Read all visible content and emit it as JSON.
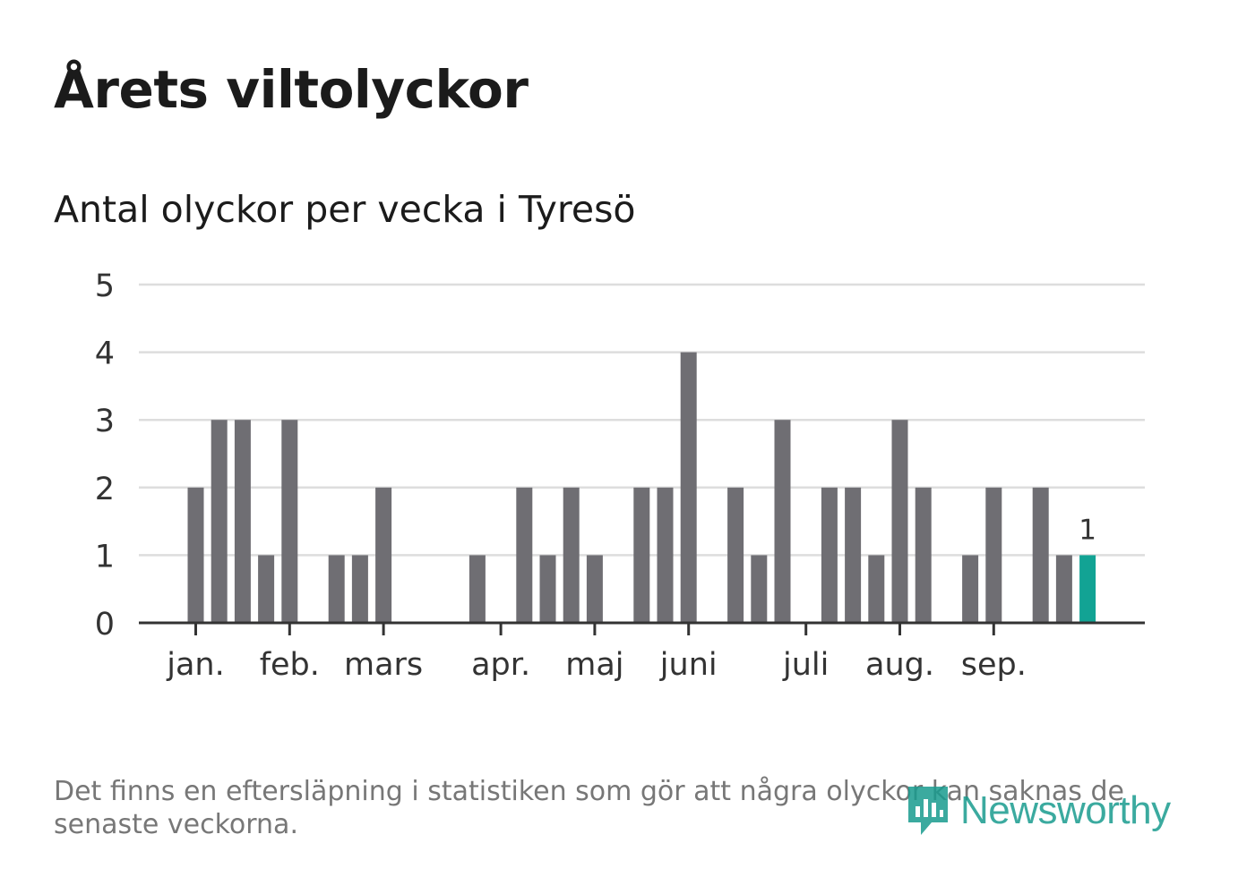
{
  "header": {
    "title": "Årets viltolyckor",
    "subtitle": "Antal olyckor per vecka i Tyresö"
  },
  "footer": {
    "note": "Det finns en eftersläpning i statistiken som gör att några olyckor kan saknas de senaste veckorna.",
    "brand": "Newsworthy"
  },
  "colors": {
    "bar": "#6f6e73",
    "highlight": "#12a394",
    "grid": "#dddddd",
    "axis": "#333333",
    "text": "#333333"
  },
  "chart_data": {
    "type": "bar",
    "title": "Antal olyckor per vecka i Tyresö",
    "xlabel": "",
    "ylabel": "",
    "ylim": [
      0,
      5
    ],
    "yticks": [
      0,
      1,
      2,
      3,
      4,
      5
    ],
    "weeks": [
      1,
      2,
      3,
      4,
      5,
      6,
      7,
      8,
      9,
      10,
      11,
      12,
      13,
      14,
      15,
      16,
      17,
      18,
      19,
      20,
      21,
      22,
      23,
      24,
      25,
      26,
      27,
      28,
      29,
      30,
      31,
      32,
      33,
      34,
      35,
      36,
      37,
      38,
      39,
      40
    ],
    "values": [
      2,
      3,
      3,
      1,
      3,
      0,
      1,
      1,
      2,
      0,
      0,
      0,
      1,
      0,
      2,
      1,
      2,
      1,
      0,
      2,
      2,
      4,
      0,
      2,
      1,
      3,
      0,
      2,
      2,
      1,
      3,
      2,
      0,
      1,
      2,
      0,
      2,
      1,
      1,
      null
    ],
    "highlight": {
      "week": 39,
      "value": 1,
      "label": "1"
    },
    "month_ticks": [
      {
        "label": "jan.",
        "week": 1.0
      },
      {
        "label": "feb.",
        "week": 5.0
      },
      {
        "label": "mars",
        "week": 9.0
      },
      {
        "label": "apr.",
        "week": 14.0
      },
      {
        "label": "maj",
        "week": 18.0
      },
      {
        "label": "juni",
        "week": 22.0
      },
      {
        "label": "juli",
        "week": 27.0
      },
      {
        "label": "aug.",
        "week": 31.0
      },
      {
        "label": "sep.",
        "week": 35.0
      }
    ]
  }
}
